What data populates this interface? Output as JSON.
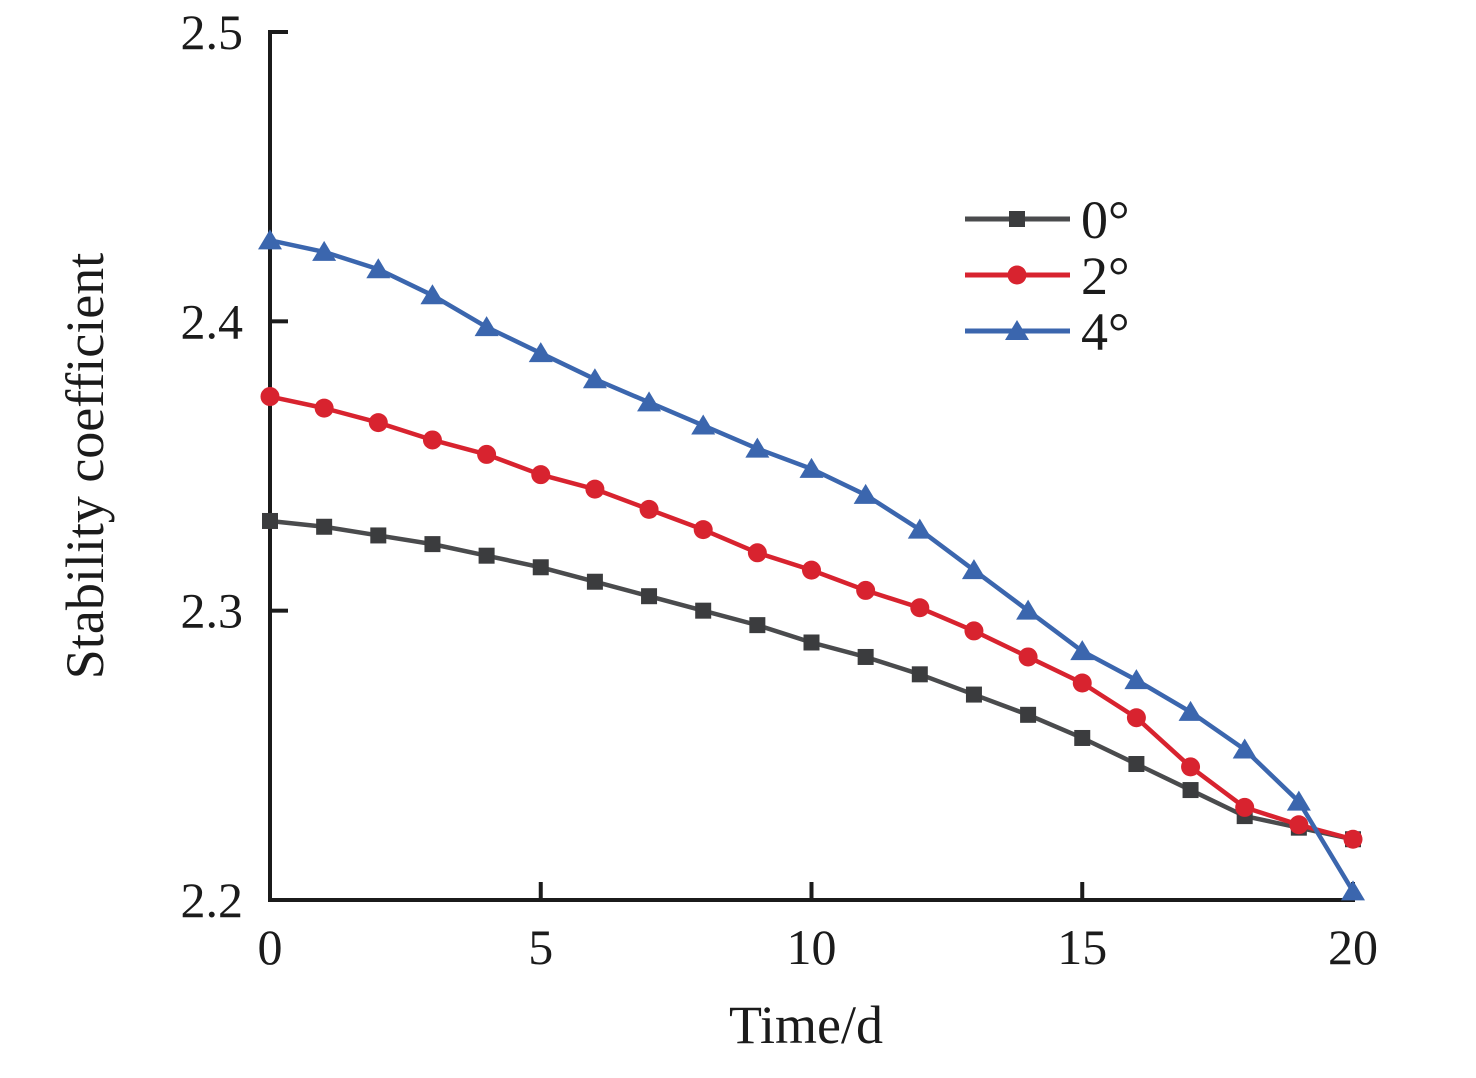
{
  "chart_data": {
    "type": "line",
    "title": "",
    "xlabel": "Time/d",
    "ylabel": "Stability coefficient",
    "xlim": [
      0,
      20
    ],
    "ylim": [
      2.2,
      2.5
    ],
    "grid": false,
    "legend_position": "inside-upper-right",
    "x_ticks": [
      0,
      5,
      10,
      15,
      20
    ],
    "x_tick_labels": [
      "0",
      "5",
      "10",
      "15",
      "20"
    ],
    "y_ticks": [
      2.2,
      2.3,
      2.4,
      2.5
    ],
    "y_tick_labels": [
      "2.2",
      "2.3",
      "2.4",
      "2.5"
    ],
    "x": [
      0,
      1,
      2,
      3,
      4,
      5,
      6,
      7,
      8,
      9,
      10,
      11,
      12,
      13,
      14,
      15,
      16,
      17,
      18,
      19,
      20
    ],
    "series": [
      {
        "name": "0°",
        "marker": "square",
        "marker_color": "#3b3c3e",
        "line_color": "#4a4b4d",
        "values": [
          2.331,
          2.329,
          2.326,
          2.323,
          2.319,
          2.315,
          2.31,
          2.305,
          2.3,
          2.295,
          2.289,
          2.284,
          2.278,
          2.271,
          2.264,
          2.256,
          2.247,
          2.238,
          2.229,
          2.225,
          2.221
        ]
      },
      {
        "name": "2°",
        "marker": "circle",
        "marker_color": "#d8232f",
        "line_color": "#d8232f",
        "values": [
          2.374,
          2.37,
          2.365,
          2.359,
          2.354,
          2.347,
          2.342,
          2.335,
          2.328,
          2.32,
          2.314,
          2.307,
          2.301,
          2.293,
          2.284,
          2.275,
          2.263,
          2.246,
          2.232,
          2.226,
          2.221
        ]
      },
      {
        "name": "4°",
        "marker": "triangle",
        "marker_color": "#3b66ae",
        "line_color": "#3b66ae",
        "values": [
          2.428,
          2.424,
          2.418,
          2.409,
          2.398,
          2.389,
          2.38,
          2.372,
          2.364,
          2.356,
          2.349,
          2.34,
          2.328,
          2.314,
          2.3,
          2.286,
          2.276,
          2.265,
          2.252,
          2.234,
          2.203
        ]
      }
    ]
  },
  "colors": {
    "background": "#ffffff",
    "axis": "#1b1b1b",
    "text": "#1b1b1b"
  }
}
